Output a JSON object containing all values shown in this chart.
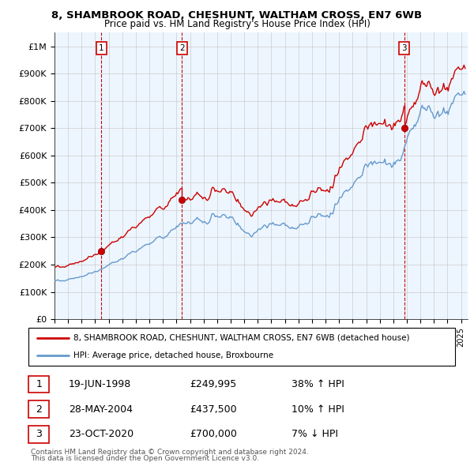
{
  "title_line1": "8, SHAMBROOK ROAD, CHESHUNT, WALTHAM CROSS, EN7 6WB",
  "title_line2": "Price paid vs. HM Land Registry's House Price Index (HPI)",
  "ylabel_ticks": [
    0,
    100000,
    200000,
    300000,
    400000,
    500000,
    600000,
    700000,
    800000,
    900000,
    1000000
  ],
  "ylabel_labels": [
    "£0",
    "£100K",
    "£200K",
    "£300K",
    "£400K",
    "£500K",
    "£600K",
    "£700K",
    "£800K",
    "£900K",
    "£1M"
  ],
  "xlim": [
    1995.0,
    2025.5
  ],
  "ylim": [
    0,
    1050000
  ],
  "sale_dates": [
    1998.46,
    2004.41,
    2020.81
  ],
  "sale_prices": [
    249995,
    437500,
    700000
  ],
  "sale_labels": [
    "1",
    "2",
    "3"
  ],
  "sale_date_strings": [
    "19-JUN-1998",
    "28-MAY-2004",
    "23-OCT-2020"
  ],
  "sale_price_strings": [
    "£249,995",
    "£437,500",
    "£700,000"
  ],
  "sale_hpi_strings": [
    "38% ↑ HPI",
    "10% ↑ HPI",
    "7% ↓ HPI"
  ],
  "property_color": "#cc0000",
  "hpi_color": "#6699cc",
  "hpi_fill_color": "#ddeeff",
  "background_color": "#ffffff",
  "grid_color": "#cccccc",
  "legend_property": "8, SHAMBROOK ROAD, CHESHUNT, WALTHAM CROSS, EN7 6WB (detached house)",
  "legend_hpi": "HPI: Average price, detached house, Broxbourne",
  "footer_line1": "Contains HM Land Registry data © Crown copyright and database right 2024.",
  "footer_line2": "This data is licensed under the Open Government Licence v3.0.",
  "dashed_color": "#cc0000"
}
